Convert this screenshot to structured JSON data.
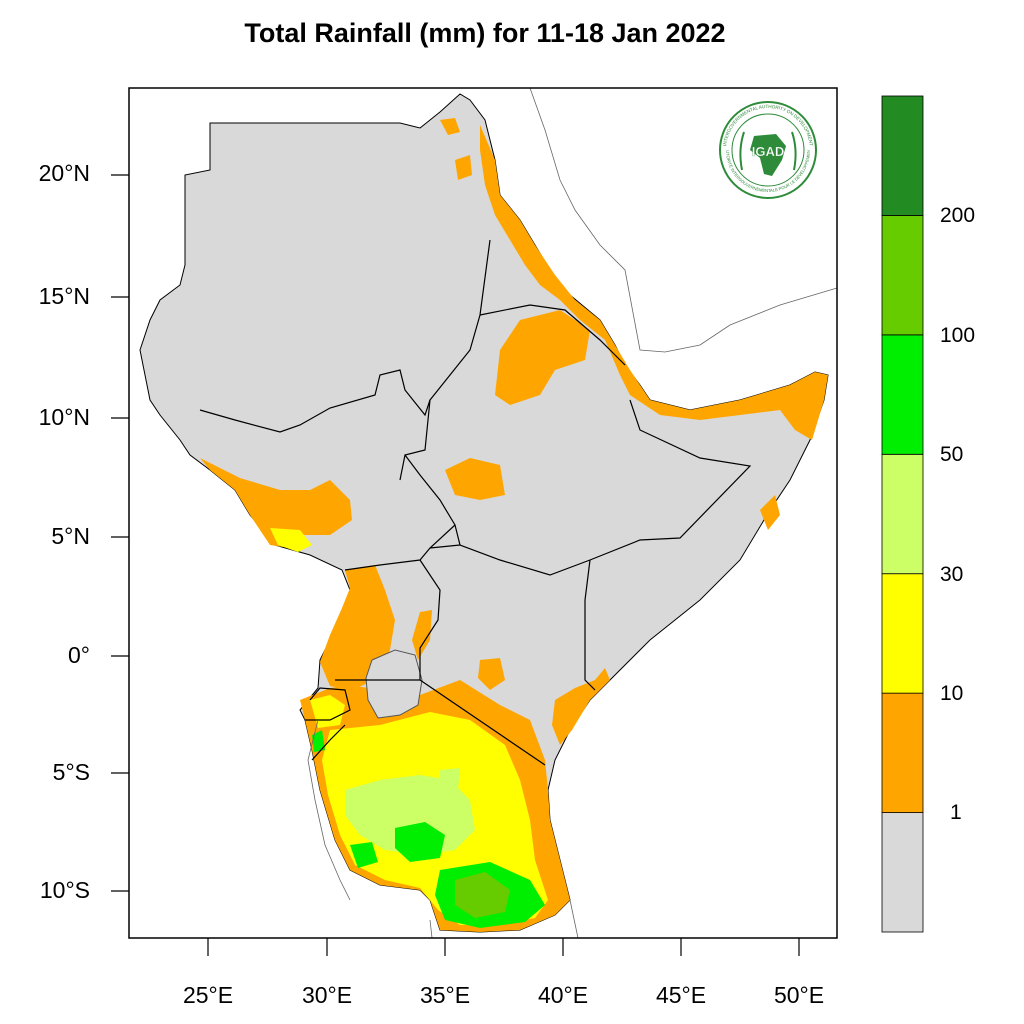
{
  "title": "Total Rainfall (mm) for 11-18 Jan 2022",
  "logo": {
    "abbr": "IGAD",
    "ring_text_top": "INTERGOVERNMENTAL AUTHORITY ON DEVELOPMENT",
    "ring_text_bottom": "AUTORITÉ INTERGOUVERNEMENTALE POUR LE DÉVELOPPEMENT",
    "colors": {
      "ring": "#2e8b3a",
      "africa": "#2e8b3a",
      "text": "#2e8b3a"
    }
  },
  "lat_ticks": [
    "20°N",
    "15°N",
    "10°N",
    "5°N",
    "0°",
    "5°S",
    "10°S"
  ],
  "lon_ticks": [
    "25°E",
    "30°E",
    "35°E",
    "40°E",
    "45°E",
    "50°E"
  ],
  "colorbar": {
    "labels": [
      "200",
      "100",
      "50",
      "30",
      "10",
      "1"
    ],
    "bins": [
      {
        "range": "<1",
        "color": "#d9d9d9"
      },
      {
        "range": "1-10",
        "color": "#ffa500"
      },
      {
        "range": "10-30",
        "color": "#ffff00"
      },
      {
        "range": "30-50",
        "color": "#ccff66"
      },
      {
        "range": "50-100",
        "color": "#00ee00"
      },
      {
        "range": "100-200",
        "color": "#66cc00"
      },
      {
        "range": ">200",
        "color": "#228b22"
      }
    ]
  },
  "colors": {
    "land": "#d9d9d9",
    "light_rain": "#ffa500",
    "moderate_rain": "#ffff00",
    "heavy_rain": "#ccff66",
    "very_heavy_rain": "#00ee00",
    "extreme_rain": "#66cc00",
    "border": "#000000"
  }
}
